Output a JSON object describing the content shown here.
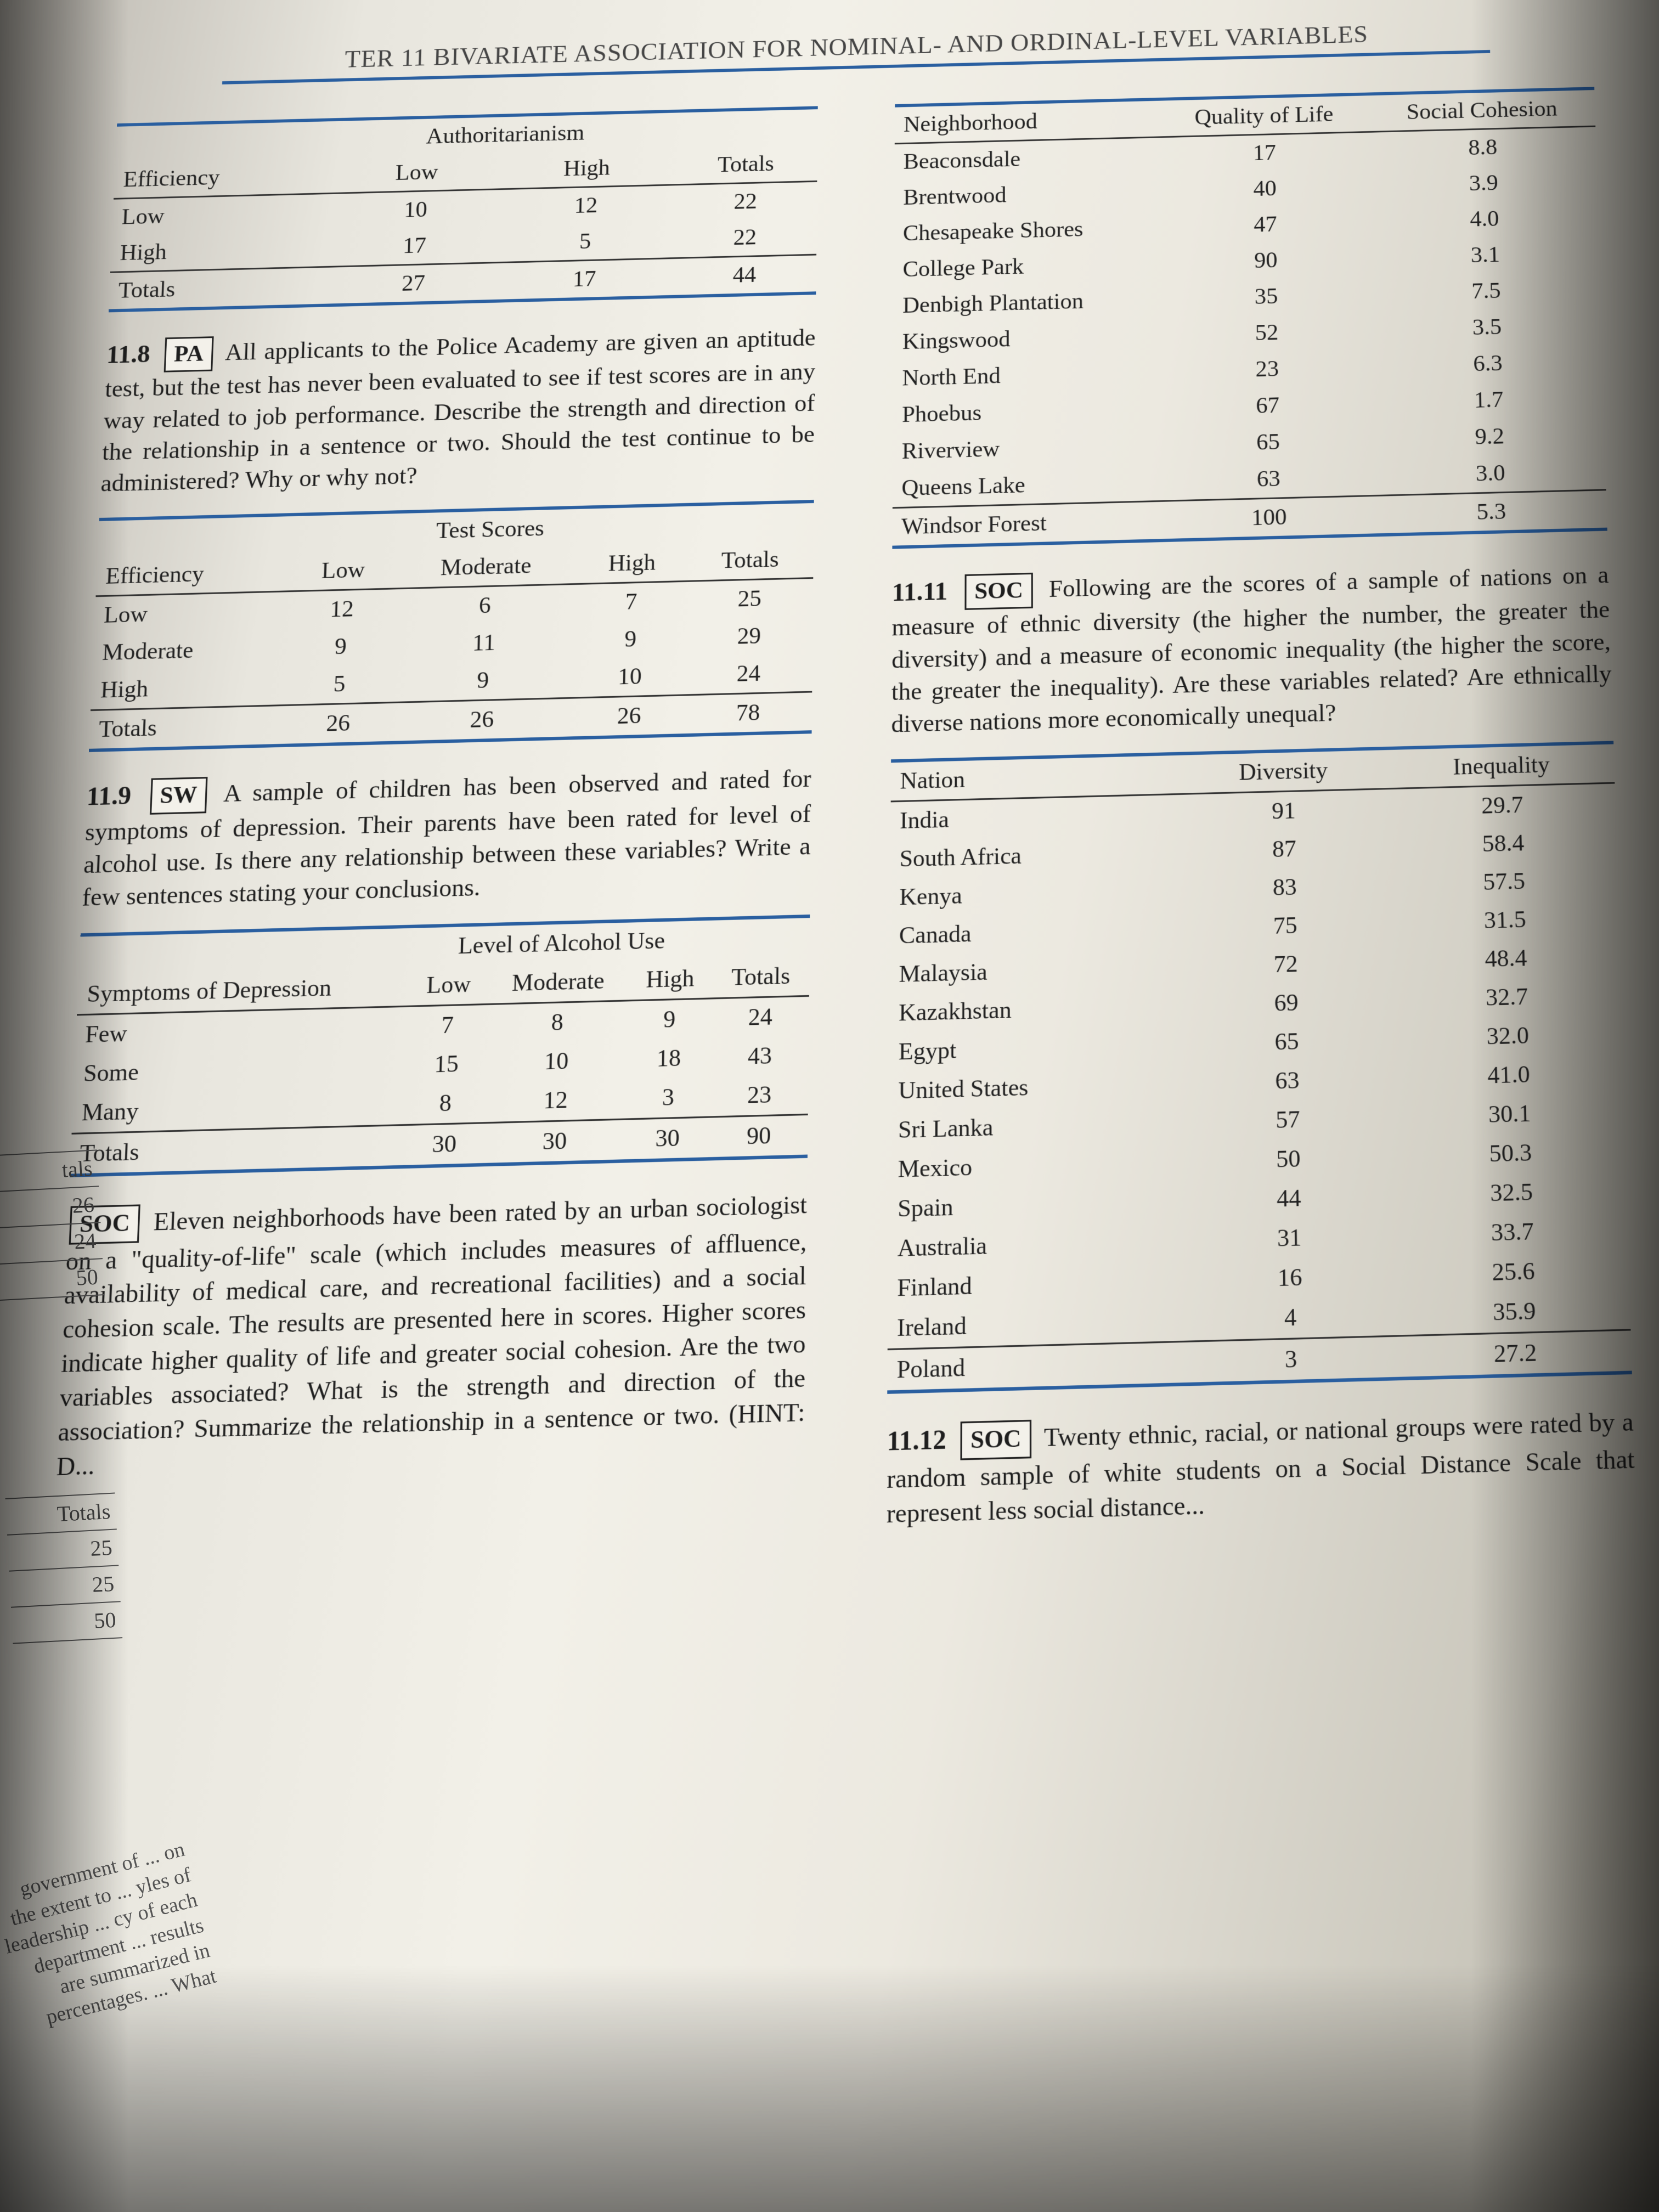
{
  "chapter_head": "TER 11  BIVARIATE ASSOCIATION FOR NOMINAL- AND ORDINAL-LEVEL VARIABLES",
  "rule_color": "#2a5fa0",
  "table_auth": {
    "spanner": "Authoritarianism",
    "row_header": "Efficiency",
    "col_headers": [
      "Low",
      "High",
      "Totals"
    ],
    "rows": [
      {
        "label": "Low",
        "cells": [
          "10",
          "12",
          "22"
        ]
      },
      {
        "label": "High",
        "cells": [
          "17",
          "5",
          "22"
        ]
      },
      {
        "label": "Totals",
        "cells": [
          "27",
          "17",
          "44"
        ]
      }
    ]
  },
  "p118_num": "11.8",
  "p118_tag": "PA",
  "p118_text": "All applicants to the Police Academy are given an aptitude test, but the test has never been evaluated to see if test scores are in any way related to job performance. Describe the strength and direction of the relationship in a sentence or two. Should the test continue to be administered? Why or why not?",
  "table_test": {
    "spanner": "Test Scores",
    "row_header": "Efficiency",
    "col_headers": [
      "Low",
      "Moderate",
      "High",
      "Totals"
    ],
    "rows": [
      {
        "label": "Low",
        "cells": [
          "12",
          "6",
          "7",
          "25"
        ]
      },
      {
        "label": "Moderate",
        "cells": [
          "9",
          "11",
          "9",
          "29"
        ]
      },
      {
        "label": "High",
        "cells": [
          "5",
          "9",
          "10",
          "24"
        ]
      },
      {
        "label": "Totals",
        "cells": [
          "26",
          "26",
          "26",
          "78"
        ]
      }
    ]
  },
  "p119_num": "11.9",
  "p119_tag": "SW",
  "p119_text": "A sample of children has been observed and rated for symptoms of depression. Their parents have been rated for level of alcohol use. Is there any relationship between these variables? Write a few sentences stating your conclusions.",
  "table_alc": {
    "spanner": "Level of Alcohol Use",
    "row_header": "Symptoms of Depression",
    "col_headers": [
      "Low",
      "Moderate",
      "High",
      "Totals"
    ],
    "rows": [
      {
        "label": "Few",
        "cells": [
          "7",
          "8",
          "9",
          "24"
        ]
      },
      {
        "label": "Some",
        "cells": [
          "15",
          "10",
          "18",
          "43"
        ]
      },
      {
        "label": "Many",
        "cells": [
          "8",
          "12",
          "3",
          "23"
        ]
      },
      {
        "label": "Totals",
        "cells": [
          "30",
          "30",
          "30",
          "90"
        ]
      }
    ]
  },
  "p1110_tag": "SOC",
  "p1110_text": "Eleven neighborhoods have been rated by an urban sociologist on a \"quality-of-life\" scale (which includes measures of affluence, availability of medical care, and recreational facilities) and a social cohesion scale. The results are presented here in scores. Higher scores indicate higher quality of life and greater social cohesion. Are the two variables associated? What is the strength and direction of the association? Summarize the relationship in a sentence or two. (HINT: D...",
  "table_neigh": {
    "col_headers": [
      "Neighborhood",
      "Quality of Life",
      "Social Cohesion"
    ],
    "rows": [
      {
        "cells": [
          "Beaconsdale",
          "17",
          "8.8"
        ]
      },
      {
        "cells": [
          "Brentwood",
          "40",
          "3.9"
        ]
      },
      {
        "cells": [
          "Chesapeake Shores",
          "47",
          "4.0"
        ]
      },
      {
        "cells": [
          "College Park",
          "90",
          "3.1"
        ]
      },
      {
        "cells": [
          "Denbigh Plantation",
          "35",
          "7.5"
        ]
      },
      {
        "cells": [
          "Kingswood",
          "52",
          "3.5"
        ]
      },
      {
        "cells": [
          "North End",
          "23",
          "6.3"
        ]
      },
      {
        "cells": [
          "Phoebus",
          "67",
          "1.7"
        ]
      },
      {
        "cells": [
          "Riverview",
          "65",
          "9.2"
        ]
      },
      {
        "cells": [
          "Queens Lake",
          "63",
          "3.0"
        ]
      },
      {
        "cells": [
          "Windsor Forest",
          "100",
          "5.3"
        ]
      }
    ]
  },
  "p1111_num": "11.11",
  "p1111_tag": "SOC",
  "p1111_text": "Following are the scores of a sample of nations on a measure of ethnic diversity (the higher the number, the greater the diversity) and a measure of economic inequality (the higher the score, the greater the inequality). Are these variables related? Are ethnically diverse nations more economically unequal?",
  "table_div": {
    "col_headers": [
      "Nation",
      "Diversity",
      "Inequality"
    ],
    "rows": [
      {
        "cells": [
          "India",
          "91",
          "29.7"
        ]
      },
      {
        "cells": [
          "South Africa",
          "87",
          "58.4"
        ]
      },
      {
        "cells": [
          "Kenya",
          "83",
          "57.5"
        ]
      },
      {
        "cells": [
          "Canada",
          "75",
          "31.5"
        ]
      },
      {
        "cells": [
          "Malaysia",
          "72",
          "48.4"
        ]
      },
      {
        "cells": [
          "Kazakhstan",
          "69",
          "32.7"
        ]
      },
      {
        "cells": [
          "Egypt",
          "65",
          "32.0"
        ]
      },
      {
        "cells": [
          "United States",
          "63",
          "41.0"
        ]
      },
      {
        "cells": [
          "Sri Lanka",
          "57",
          "30.1"
        ]
      },
      {
        "cells": [
          "Mexico",
          "50",
          "50.3"
        ]
      },
      {
        "cells": [
          "Spain",
          "44",
          "32.5"
        ]
      },
      {
        "cells": [
          "Australia",
          "31",
          "33.7"
        ]
      },
      {
        "cells": [
          "Finland",
          "16",
          "25.6"
        ]
      },
      {
        "cells": [
          "Ireland",
          "4",
          "35.9"
        ]
      },
      {
        "cells": [
          "Poland",
          "3",
          "27.2"
        ]
      }
    ]
  },
  "p1112_num": "11.12",
  "p1112_tag": "SOC",
  "p1112_text": "Twenty ethnic, racial, or national groups were rated by a random sample of white students on a Social Distance Scale that represent less social distance...",
  "left_crop": {
    "tals": "tals",
    "r1": "26",
    "r2": "24",
    "r3": "50",
    "totals": "Totals",
    "t1": "25",
    "t2": "25",
    "t3": "50"
  },
  "left_fragment": "government of ... on the extent to ... yles of leadership ... cy of each department ... results are summarized in percentages. ... What"
}
